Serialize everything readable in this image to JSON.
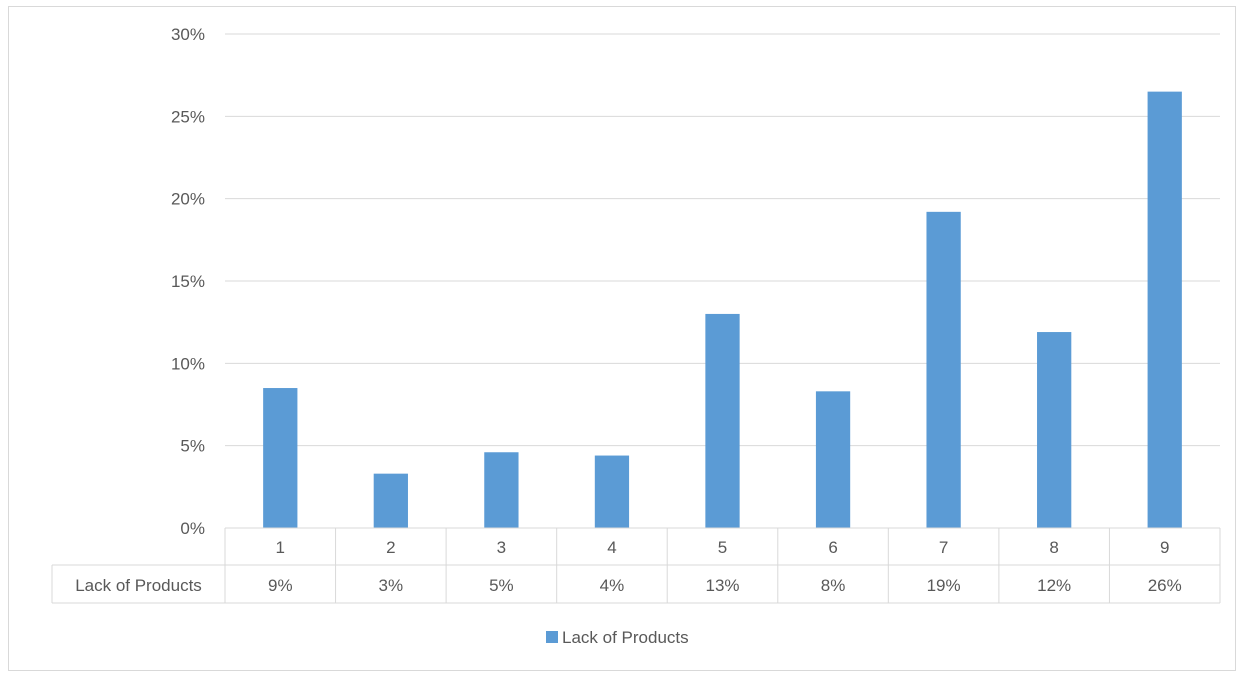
{
  "chart_data": {
    "type": "bar",
    "categories": [
      "1",
      "2",
      "3",
      "4",
      "5",
      "6",
      "7",
      "8",
      "9"
    ],
    "series": [
      {
        "name": "Lack of Products",
        "values": [
          0.085,
          0.033,
          0.046,
          0.044,
          0.13,
          0.083,
          0.192,
          0.119,
          0.265
        ],
        "table_labels": [
          "9%",
          "3%",
          "5%",
          "4%",
          "13%",
          "8%",
          "19%",
          "12%",
          "26%"
        ]
      }
    ],
    "ylim": [
      0,
      0.3
    ],
    "y_ticks": [
      0,
      0.05,
      0.1,
      0.15,
      0.2,
      0.25,
      0.3
    ],
    "y_tick_labels": [
      "0%",
      "5%",
      "10%",
      "15%",
      "20%",
      "25%",
      "30%"
    ],
    "grid": true,
    "legend_position": "bottom",
    "data_table": true,
    "colors": {
      "bar": "#5b9bd5",
      "grid": "#d9d9d9",
      "text": "#595959"
    }
  }
}
